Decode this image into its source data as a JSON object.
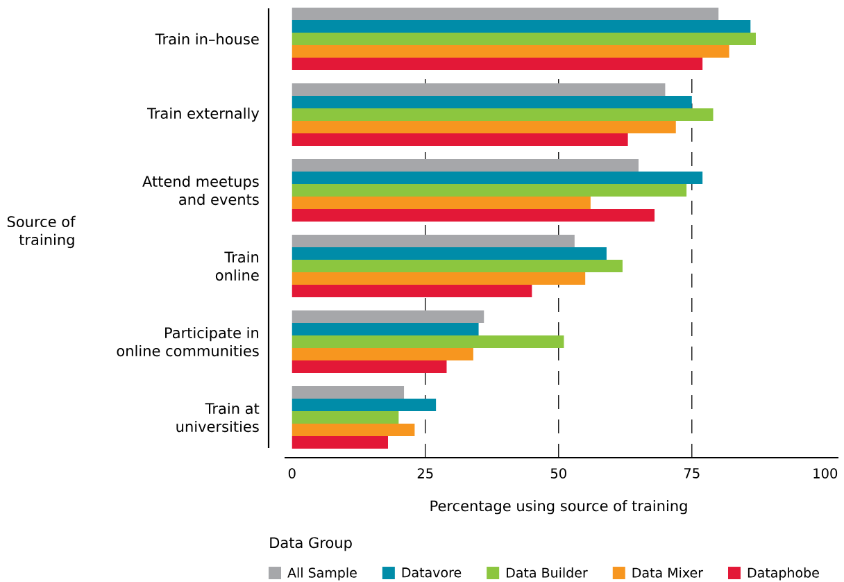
{
  "chart_data": {
    "type": "bar",
    "orientation": "horizontal",
    "xlabel": "Percentage using source of training",
    "ylabel": "Source of\ntraining",
    "legend_title": "Data Group",
    "categories": [
      "Train in–house",
      "Train externally",
      "Attend meetups\nand events",
      "Train\nonline",
      "Participate in\nonline communities",
      "Train at\nuniversities"
    ],
    "series": [
      {
        "name": "All Sample",
        "color": "#a6a7aa",
        "values": [
          80,
          70,
          65,
          53,
          36,
          21
        ]
      },
      {
        "name": "Datavore",
        "color": "#008ca8",
        "values": [
          86,
          75,
          77,
          59,
          35,
          27
        ]
      },
      {
        "name": "Data Builder",
        "color": "#8cc63f",
        "values": [
          87,
          79,
          74,
          62,
          51,
          20
        ]
      },
      {
        "name": "Data Mixer",
        "color": "#f7961f",
        "values": [
          82,
          72,
          56,
          55,
          34,
          23
        ]
      },
      {
        "name": "Dataphobe",
        "color": "#e31837",
        "values": [
          77,
          63,
          68,
          45,
          29,
          18
        ]
      }
    ],
    "xlim": [
      -1.4,
      102.5
    ],
    "xticks": [
      0,
      25,
      50,
      75,
      100
    ],
    "grid": "x",
    "legend": "bottom"
  }
}
